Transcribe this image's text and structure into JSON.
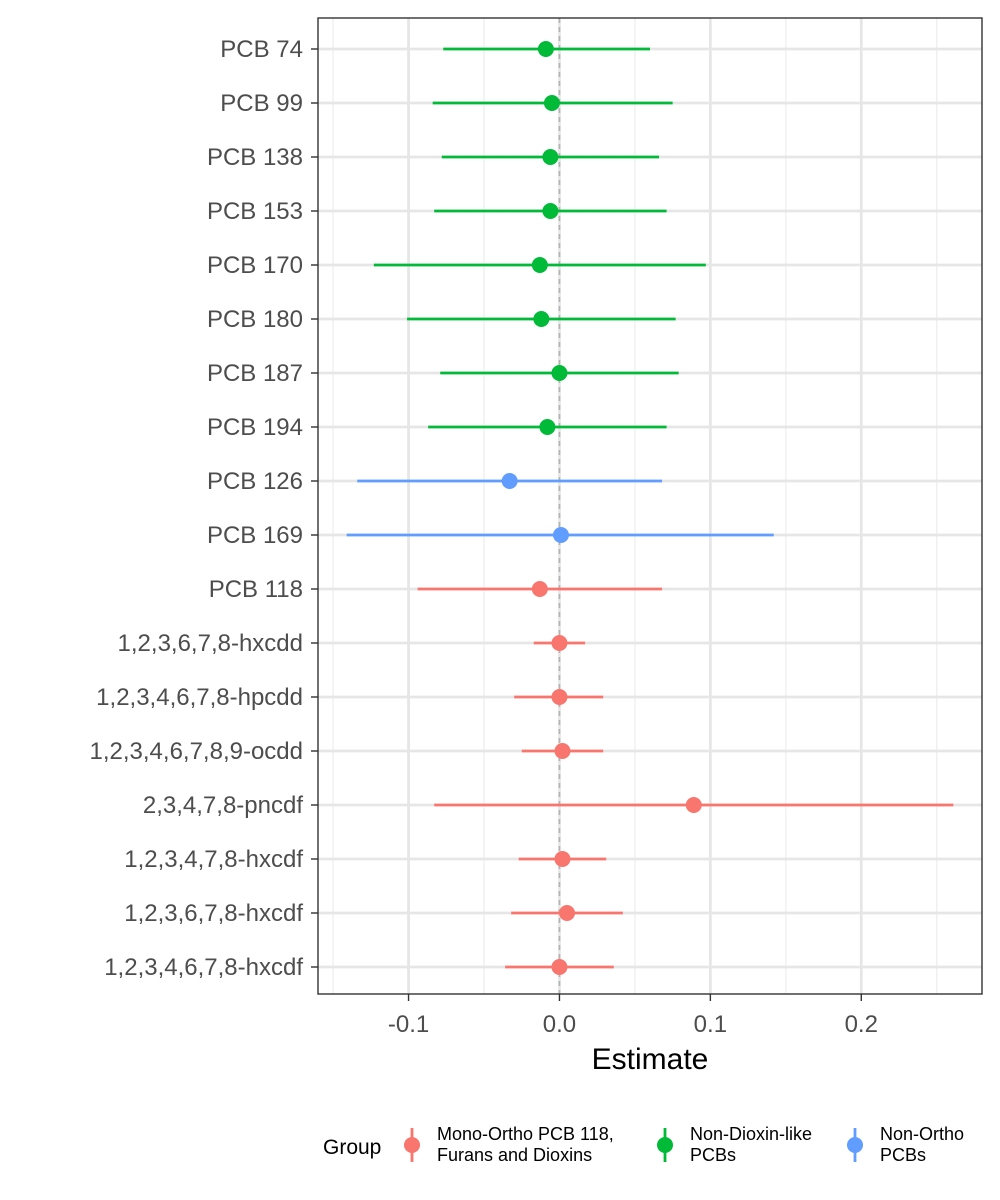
{
  "chart_data": {
    "type": "scatter",
    "subtype": "forest-plot",
    "title": "",
    "xlabel": "Estimate",
    "ylabel": "",
    "xlim": [
      -0.16,
      0.28
    ],
    "x_ticks": [
      -0.1,
      0.0,
      0.1,
      0.2
    ],
    "x_tick_labels": [
      "-0.1",
      "0.0",
      "0.1",
      "0.2"
    ],
    "reference_line": 0,
    "grid": true,
    "legend": {
      "title": "Group",
      "position": "bottom",
      "entries": [
        {
          "key": "mono",
          "lines": [
            "Mono-Ortho PCB 118,",
            "Furans and Dioxins"
          ],
          "color": "#F8766D"
        },
        {
          "key": "ndl",
          "lines": [
            "Non-Dioxin-like",
            "PCBs"
          ],
          "color": "#00BA38"
        },
        {
          "key": "nonortho",
          "lines": [
            "Non-Ortho",
            "PCBs"
          ],
          "color": "#619CFF"
        }
      ]
    },
    "rows": [
      {
        "label": "PCB 74",
        "group": "ndl",
        "estimate": -0.009,
        "low": -0.077,
        "high": 0.06
      },
      {
        "label": "PCB 99",
        "group": "ndl",
        "estimate": -0.005,
        "low": -0.084,
        "high": 0.075
      },
      {
        "label": "PCB 138",
        "group": "ndl",
        "estimate": -0.006,
        "low": -0.078,
        "high": 0.066
      },
      {
        "label": "PCB 153",
        "group": "ndl",
        "estimate": -0.006,
        "low": -0.083,
        "high": 0.071
      },
      {
        "label": "PCB 170",
        "group": "ndl",
        "estimate": -0.013,
        "low": -0.123,
        "high": 0.097
      },
      {
        "label": "PCB 180",
        "group": "ndl",
        "estimate": -0.012,
        "low": -0.101,
        "high": 0.077
      },
      {
        "label": "PCB 187",
        "group": "ndl",
        "estimate": 0.0,
        "low": -0.079,
        "high": 0.079
      },
      {
        "label": "PCB 194",
        "group": "ndl",
        "estimate": -0.008,
        "low": -0.087,
        "high": 0.071
      },
      {
        "label": "PCB 126",
        "group": "nonortho",
        "estimate": -0.033,
        "low": -0.134,
        "high": 0.068
      },
      {
        "label": "PCB 169",
        "group": "nonortho",
        "estimate": 0.001,
        "low": -0.141,
        "high": 0.142
      },
      {
        "label": "PCB 118",
        "group": "mono",
        "estimate": -0.013,
        "low": -0.094,
        "high": 0.068
      },
      {
        "label": "1,2,3,6,7,8-hxcdd",
        "group": "mono",
        "estimate": 0.0,
        "low": -0.017,
        "high": 0.017
      },
      {
        "label": "1,2,3,4,6,7,8-hpcdd",
        "group": "mono",
        "estimate": 0.0,
        "low": -0.03,
        "high": 0.029
      },
      {
        "label": "1,2,3,4,6,7,8,9-ocdd",
        "group": "mono",
        "estimate": 0.002,
        "low": -0.025,
        "high": 0.029
      },
      {
        "label": "2,3,4,7,8-pncdf",
        "group": "mono",
        "estimate": 0.089,
        "low": -0.083,
        "high": 0.261
      },
      {
        "label": "1,2,3,4,7,8-hxcdf",
        "group": "mono",
        "estimate": 0.002,
        "low": -0.027,
        "high": 0.031
      },
      {
        "label": "1,2,3,6,7,8-hxcdf",
        "group": "mono",
        "estimate": 0.005,
        "low": -0.032,
        "high": 0.042
      },
      {
        "label": "1,2,3,4,6,7,8-hxcdf",
        "group": "mono",
        "estimate": 0.0,
        "low": -0.036,
        "high": 0.036
      }
    ]
  }
}
